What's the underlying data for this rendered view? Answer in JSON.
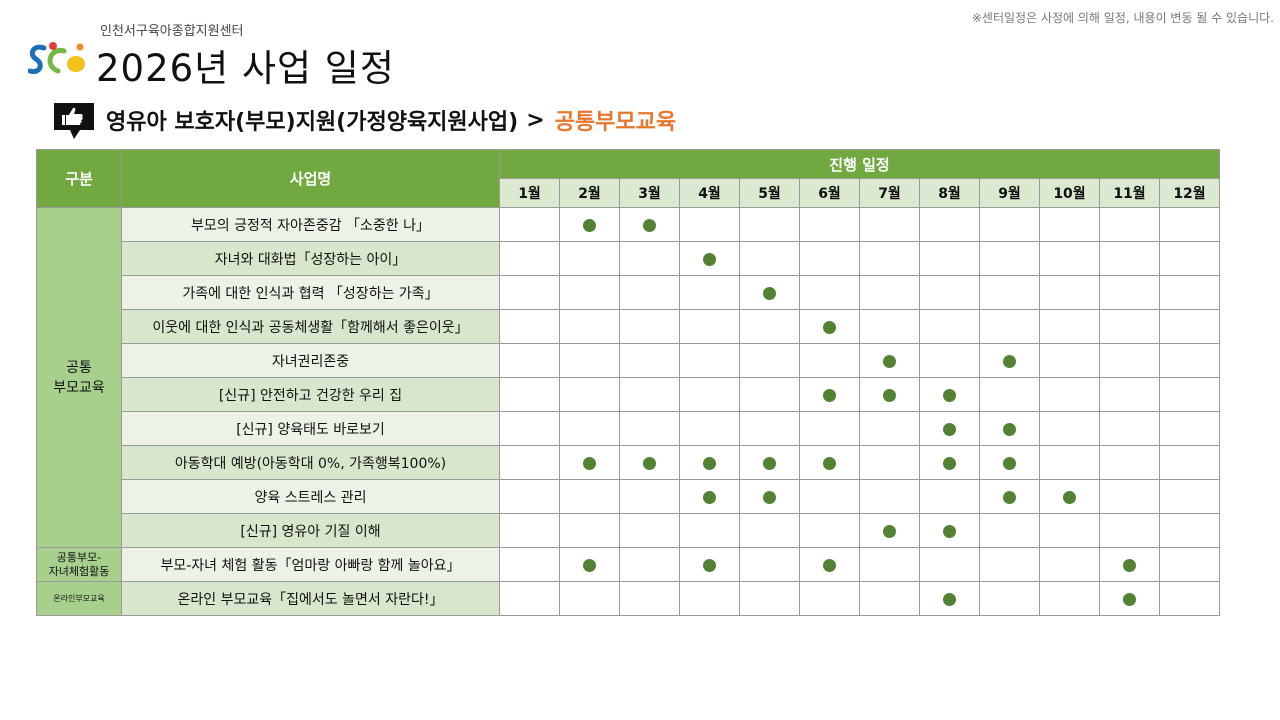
{
  "notice": "※센터일정은 사정에 의해 일정, 내용이 변동 될 수 있습니다.",
  "header": {
    "org_name": "인천서구육아종합지원센터",
    "title": "2026년 사업 일정"
  },
  "section": {
    "path": "영유아 보호자(부모)지원(가정양육지원사업)",
    "arrow": ">",
    "highlight": "공통부모교육"
  },
  "colors": {
    "header_green": "#72a840",
    "category_green": "#a8d08d",
    "dot": "#548235",
    "highlight_orange": "#e8772e"
  },
  "icons": {
    "logo": "center-logo",
    "section": "thumbs-up-speech-bubble-icon"
  },
  "table": {
    "headers": {
      "category": "구분",
      "program": "사업명",
      "schedule": "진행 일정"
    },
    "months": [
      "1월",
      "2월",
      "3월",
      "4월",
      "5월",
      "6월",
      "7월",
      "8월",
      "9월",
      "10월",
      "11월",
      "12월"
    ],
    "categories": [
      {
        "label": "공통\n부모교육",
        "size": "normal"
      },
      {
        "label": "공통부모-\n자녀체험활동",
        "size": "small"
      },
      {
        "label": "온라인부모교육",
        "size": "xsmall"
      }
    ],
    "rows": [
      {
        "name": "부모의 긍정적 자아존중감 「소중한 나」",
        "category": 0,
        "months": [
          2,
          3
        ]
      },
      {
        "name": "자녀와 대화법「성장하는 아이」",
        "category": 0,
        "months": [
          4
        ]
      },
      {
        "name": "가족에 대한 인식과 협력 「성장하는 가족」",
        "category": 0,
        "months": [
          5
        ]
      },
      {
        "name": "이웃에 대한 인식과 공동체생활「함께해서 좋은이웃」",
        "category": 0,
        "months": [
          6
        ]
      },
      {
        "name": "자녀권리존중",
        "category": 0,
        "months": [
          7,
          9
        ]
      },
      {
        "name": "[신규] 안전하고 건강한 우리 집",
        "category": 0,
        "months": [
          6,
          7,
          8
        ]
      },
      {
        "name": "[신규] 양육태도 바로보기",
        "category": 0,
        "months": [
          8,
          9
        ]
      },
      {
        "name": "아동학대 예방(아동학대 0%, 가족행복100%)",
        "category": 0,
        "months": [
          2,
          3,
          4,
          5,
          6,
          8,
          9
        ]
      },
      {
        "name": "양육 스트레스 관리",
        "category": 0,
        "months": [
          4,
          5,
          9,
          10
        ]
      },
      {
        "name": "[신규] 영유아 기질 이해",
        "category": 0,
        "months": [
          7,
          8
        ]
      },
      {
        "name": "부모-자녀 체험 활동「엄마랑 아빠랑 함께 놀아요」",
        "category": 1,
        "months": [
          2,
          4,
          6,
          11
        ]
      },
      {
        "name": "온라인 부모교육「집에서도 놀면서 자란다!」",
        "category": 2,
        "months": [
          8,
          11
        ]
      }
    ]
  }
}
